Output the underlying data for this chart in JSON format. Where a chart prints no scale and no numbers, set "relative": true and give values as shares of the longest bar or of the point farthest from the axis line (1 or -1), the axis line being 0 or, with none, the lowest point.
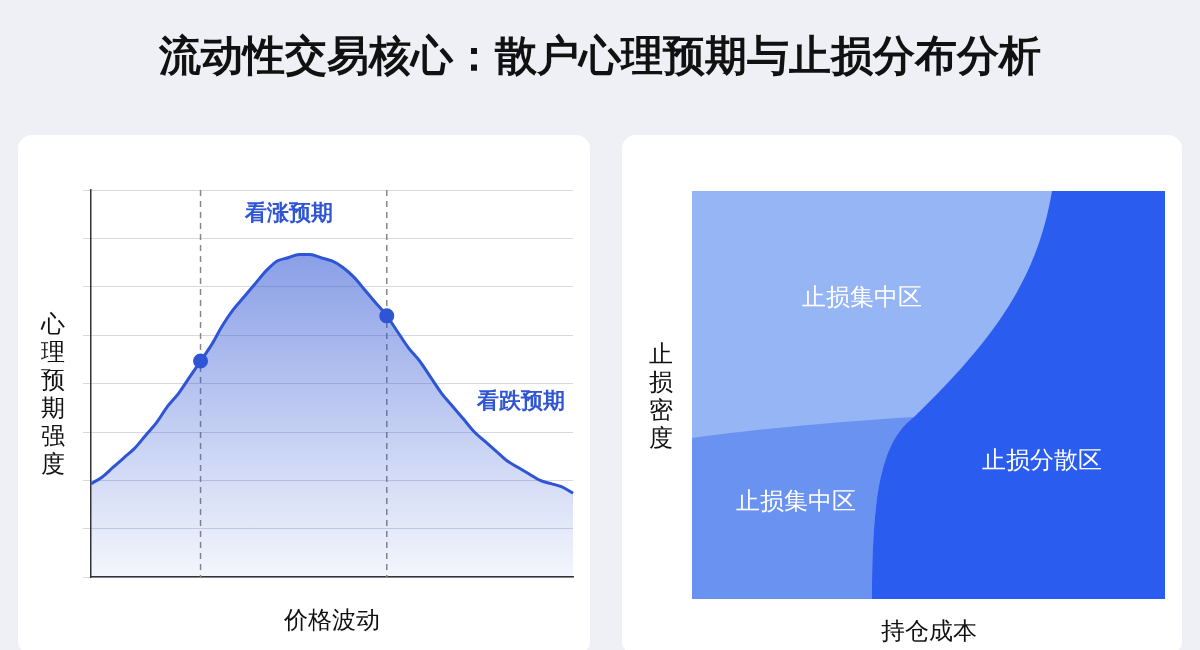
{
  "chart_data": [
    {
      "type": "area",
      "title": "流动性交易核心：散户心理预期与止损分布分析",
      "xlabel": "价格波动",
      "ylabel": "心理预期强度",
      "relative": true,
      "grid": "y",
      "color": "#2f55d4",
      "categories": [
        null,
        null,
        null,
        null,
        null,
        null,
        null,
        null,
        null,
        null,
        null,
        null,
        null,
        null,
        null,
        null,
        null,
        null,
        null,
        null,
        null,
        null,
        null,
        null,
        null,
        null,
        null,
        null,
        null,
        null,
        null,
        null,
        null,
        null,
        null,
        null,
        null,
        null,
        null,
        null,
        null,
        null,
        null,
        null,
        null
      ],
      "values": [
        0.29,
        0.31,
        0.34,
        0.37,
        0.4,
        0.44,
        0.48,
        0.53,
        0.57,
        0.62,
        0.67,
        0.72,
        0.78,
        0.83,
        0.87,
        0.91,
        0.95,
        0.98,
        0.99,
        1,
        1,
        0.99,
        0.98,
        0.96,
        0.93,
        0.89,
        0.85,
        0.81,
        0.76,
        0.71,
        0.67,
        0.62,
        0.57,
        0.53,
        0.49,
        0.45,
        0.42,
        0.39,
        0.36,
        0.34,
        0.32,
        0.3,
        0.29,
        0.28,
        0.26
      ],
      "annotations": [
        "看涨预期",
        "看跌预期"
      ]
    },
    {
      "type": "other",
      "xlabel": "持仓成本",
      "ylabel": "止损密度",
      "annotations": [
        "止损集中区",
        "止损集中区",
        "止损分散区"
      ]
    }
  ]
}
